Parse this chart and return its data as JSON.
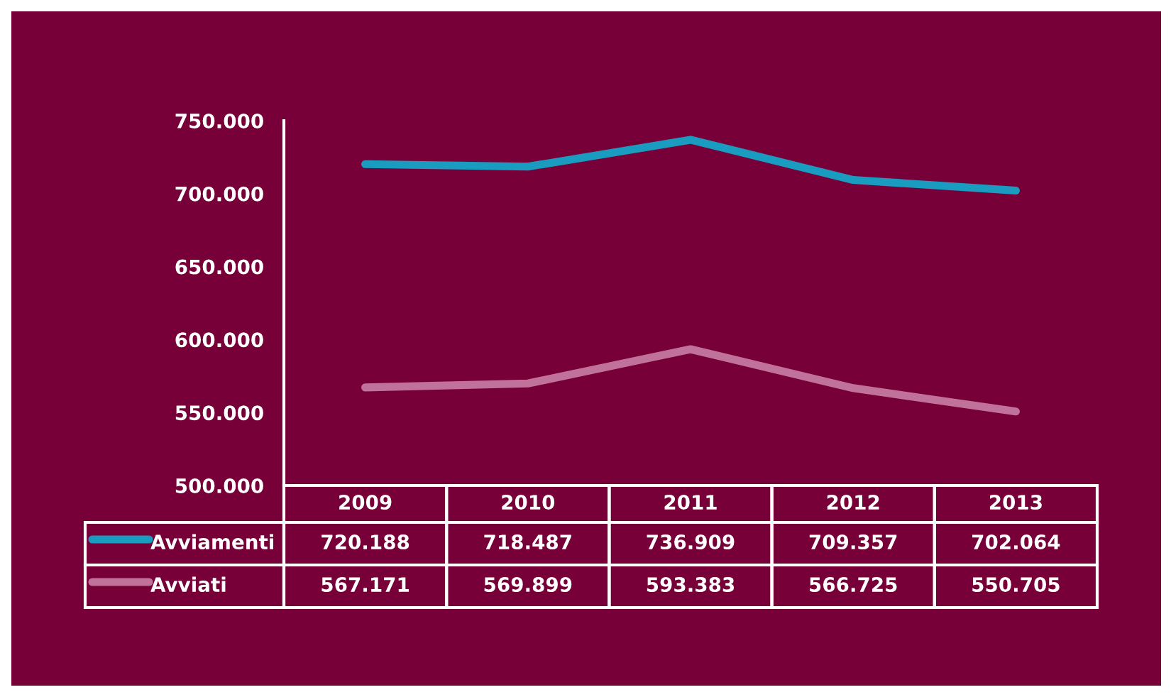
{
  "chart_data": {
    "type": "line",
    "categories": [
      "2009",
      "2010",
      "2011",
      "2012",
      "2013"
    ],
    "series": [
      {
        "name": "Avviamenti",
        "color": "#1a9cc0",
        "values": [
          720188,
          718487,
          736909,
          709357,
          702064
        ],
        "value_labels": [
          "720.188",
          "718.487",
          "736.909",
          "709.357",
          "702.064"
        ]
      },
      {
        "name": "Avviati",
        "color": "#c0729a",
        "values": [
          567171,
          569899,
          593383,
          566725,
          550705
        ],
        "value_labels": [
          "567.171",
          "569.899",
          "593.383",
          "566.725",
          "550.705"
        ]
      }
    ],
    "ylim": [
      500000,
      750000
    ],
    "yticks": [
      {
        "value": 500000,
        "label": "500.000"
      },
      {
        "value": 550000,
        "label": "550.000"
      },
      {
        "value": 600000,
        "label": "600.000"
      },
      {
        "value": 650000,
        "label": "650.000"
      },
      {
        "value": 700000,
        "label": "700.000"
      },
      {
        "value": 750000,
        "label": "750.000"
      }
    ],
    "grid": false,
    "legend": "bottom left",
    "marker": "none",
    "line_style": "solid"
  }
}
